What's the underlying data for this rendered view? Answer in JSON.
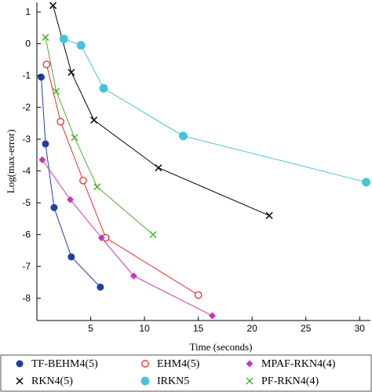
{
  "chart_data": {
    "type": "line",
    "xlabel": "Time (seconds)",
    "ylabel": "Log(max-error)",
    "xlim": [
      0,
      31
    ],
    "ylim": [
      -8.7,
      1.3
    ],
    "x_ticks": [
      5,
      10,
      15,
      20,
      25,
      30
    ],
    "y_ticks": [
      1,
      0,
      -1,
      -2,
      -3,
      -4,
      -5,
      -6,
      -7,
      -8
    ],
    "grid": false,
    "legend_position": "bottom",
    "series": [
      {
        "name": "TF-BEHM4(5)",
        "color": "#1f3fa6",
        "marker": "filled-circle",
        "x": [
          0.4,
          0.8,
          1.6,
          3.2,
          5.9
        ],
        "y": [
          -1.05,
          -3.15,
          -5.15,
          -6.7,
          -7.65
        ]
      },
      {
        "name": "EHM4(5)",
        "color": "#e03030",
        "marker": "open-circle",
        "x": [
          0.9,
          2.2,
          4.3,
          6.4,
          15.0
        ],
        "y": [
          -0.65,
          -2.45,
          -4.3,
          -6.1,
          -7.9
        ]
      },
      {
        "name": "MPAF-RKN4(4)",
        "color": "#c837b8",
        "marker": "diamond",
        "x": [
          0.5,
          3.1,
          6.0,
          9.0,
          16.3
        ],
        "y": [
          -3.65,
          -4.9,
          -6.1,
          -7.3,
          -8.55
        ]
      },
      {
        "name": "RKN4(5)",
        "color": "#000000",
        "marker": "x",
        "x": [
          1.5,
          3.2,
          5.3,
          11.3,
          21.6
        ],
        "y": [
          1.2,
          -0.9,
          -2.4,
          -3.9,
          -5.4
        ]
      },
      {
        "name": "IRKN5",
        "color": "#48c4d8",
        "marker": "big-filled-circle",
        "x": [
          2.5,
          4.1,
          6.2,
          13.6,
          30.6
        ],
        "y": [
          0.15,
          -0.05,
          -1.4,
          -2.9,
          -4.35
        ]
      },
      {
        "name": "PF-RKN4(4)",
        "color": "#4caf2f",
        "marker": "x",
        "x": [
          0.8,
          1.8,
          3.5,
          5.6,
          10.8
        ],
        "y": [
          0.2,
          -1.5,
          -2.95,
          -4.5,
          -6.0
        ]
      }
    ]
  }
}
